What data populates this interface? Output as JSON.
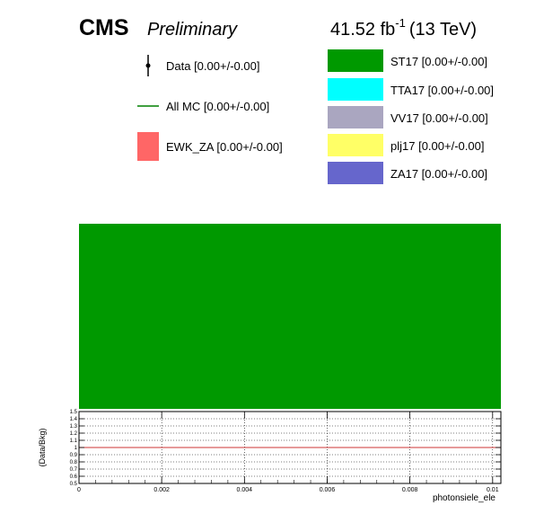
{
  "header": {
    "experiment": "CMS",
    "status": "Preliminary",
    "lumi_value": "41.52 fb",
    "lumi_exponent": "-1",
    "energy": "(13 TeV)"
  },
  "legend": {
    "left": [
      {
        "label": "Data [0.00+/-0.00]",
        "style": "marker",
        "color": "#000000"
      },
      {
        "label": "All MC [0.00+/-0.00]",
        "style": "line",
        "color": "#008000"
      },
      {
        "label": "EWK_ZA [0.00+/-0.00]",
        "style": "box",
        "color": "#ff6666"
      }
    ],
    "right": [
      {
        "label": "ST17 [0.00+/-0.00]",
        "style": "box",
        "color": "#009900"
      },
      {
        "label": "TTA17 [0.00+/-0.00]",
        "style": "box",
        "color": "#00ffff"
      },
      {
        "label": "VV17 [0.00+/-0.00]",
        "style": "box",
        "color": "#aaa6c0"
      },
      {
        "label": "plj17 [0.00+/-0.00]",
        "style": "box",
        "color": "#ffff66"
      },
      {
        "label": "ZA17 [0.00+/-0.00]",
        "style": "box",
        "color": "#6666cc"
      }
    ]
  },
  "chart_data": [
    {
      "type": "area",
      "panel": "main",
      "stacked": true,
      "series": [
        {
          "name": "ST17 [0.00+/-0.00]",
          "color": "#009900",
          "fill": "full"
        }
      ]
    },
    {
      "type": "line",
      "panel": "ratio",
      "xlabel": "photonsiele_ele",
      "ylabel": "(Data/Bkg)",
      "xlim": [
        0,
        0.0102
      ],
      "ylim": [
        0.5,
        1.5
      ],
      "x_ticks": [
        0,
        0.002,
        0.004,
        0.006,
        0.008,
        0.01
      ],
      "x_tick_labels": [
        "0",
        "0.002",
        "0.004",
        "0.006",
        "0.008",
        "0.01"
      ],
      "y_ticks": [
        0.5,
        0.6,
        0.7,
        0.8,
        0.9,
        1,
        1.1,
        1.2,
        1.3,
        1.4,
        1.5
      ],
      "y_tick_labels": [
        "0.5",
        "0.6",
        "0.7",
        "0.8",
        "0.9",
        "1",
        "1.1",
        "1.2",
        "1.3",
        "1.4",
        "1.5"
      ],
      "grid": true,
      "reference_line": {
        "y": 1,
        "color": "#cc3333"
      }
    }
  ]
}
